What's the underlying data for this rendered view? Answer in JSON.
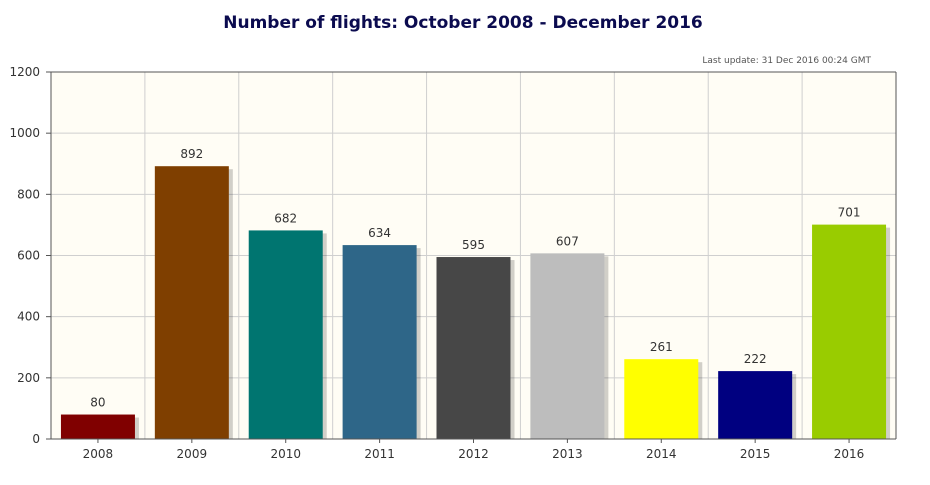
{
  "chart_data": {
    "type": "bar",
    "title": "Number of flights: October 2008 - December 2016",
    "subtitle": "Last update: 31 Dec 2016 00:24 GMT",
    "xlabel": "",
    "ylabel": "",
    "categories": [
      "2008",
      "2009",
      "2010",
      "2011",
      "2012",
      "2013",
      "2014",
      "2015",
      "2016"
    ],
    "values": [
      80,
      892,
      682,
      634,
      595,
      607,
      261,
      222,
      701
    ],
    "colors": [
      "#800000",
      "#7f3f00",
      "#007570",
      "#2e6688",
      "#474747",
      "#bdbdbd",
      "#ffff00",
      "#000080",
      "#99cc00"
    ],
    "ylim": [
      0,
      1200
    ],
    "yticks": [
      0,
      200,
      400,
      600,
      800,
      1000,
      1200
    ],
    "grid": true,
    "plot_background": "#fffdf5",
    "legend": "none"
  }
}
